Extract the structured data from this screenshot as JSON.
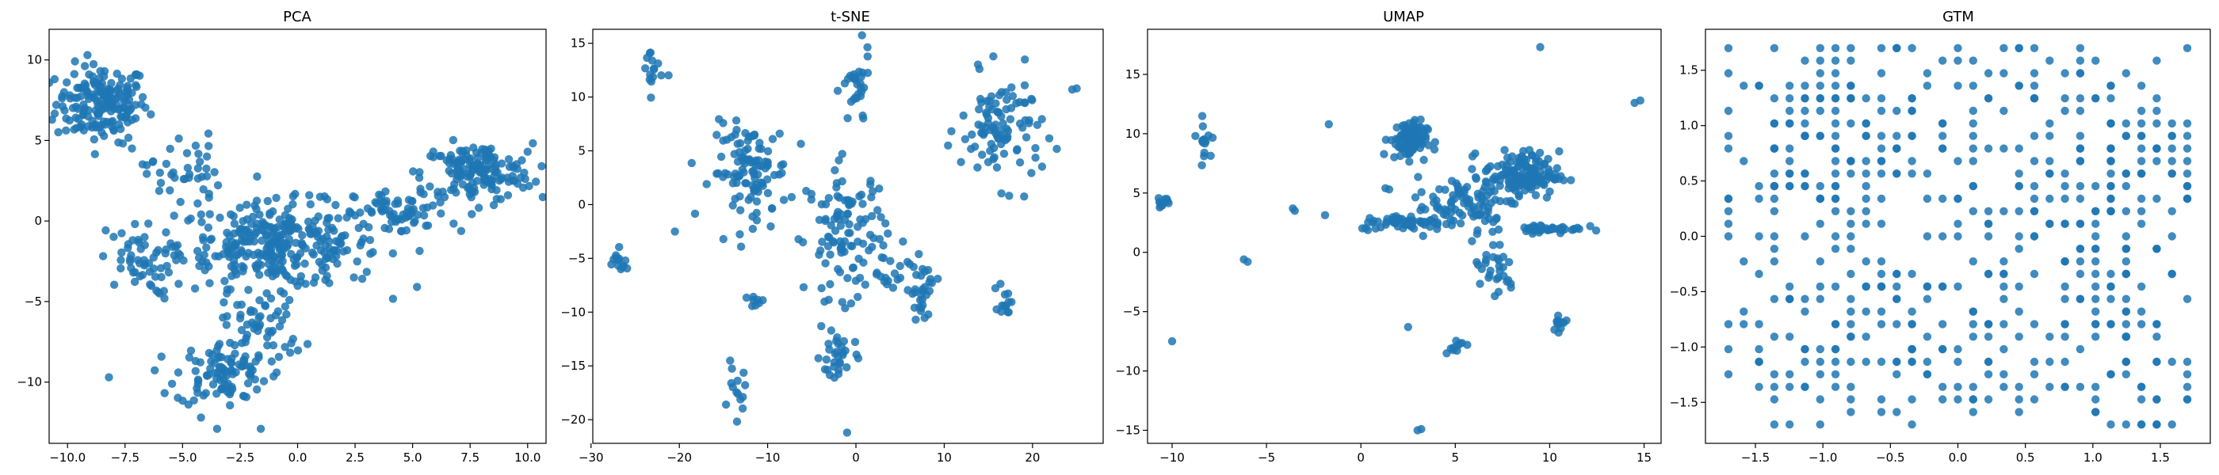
{
  "figure": {
    "panel_titles": [
      "PCA",
      "t-SNE",
      "UMAP",
      "GTM"
    ]
  },
  "chart_data": [
    {
      "type": "scatter",
      "title": "PCA",
      "xlabel": "",
      "ylabel": "",
      "xlim": [
        -10.8,
        10.8
      ],
      "ylim": [
        -13.8,
        11.9
      ],
      "xticks": [
        -10.0,
        -7.5,
        -5.0,
        -2.5,
        0.0,
        2.5,
        5.0,
        7.5,
        10.0
      ],
      "yticks": [
        -10,
        -5,
        0,
        5,
        10
      ],
      "xtick_labels": [
        "−10.0",
        "−7.5",
        "−5.0",
        "−2.5",
        "0.0",
        "2.5",
        "5.0",
        "7.5",
        "10.0"
      ],
      "ytick_labels": [
        "−10",
        "−5",
        "0",
        "5",
        "10"
      ],
      "grid": false,
      "color": "#1f77b4",
      "clusters": [
        {
          "cx": -8.5,
          "cy": 7.3,
          "sx": 1.0,
          "sy": 1.2,
          "n": 180
        },
        {
          "cx": -0.8,
          "cy": -1.5,
          "sx": 2.2,
          "sy": 1.3,
          "n": 320
        },
        {
          "cx": 7.8,
          "cy": 3.0,
          "sx": 1.2,
          "sy": 0.9,
          "n": 160
        },
        {
          "cx": -3.3,
          "cy": -9.5,
          "sx": 1.0,
          "sy": 1.0,
          "n": 90
        },
        {
          "cx": -7.0,
          "cy": -2.5,
          "sx": 0.8,
          "sy": 1.0,
          "n": 50
        },
        {
          "cx": -5.0,
          "cy": 3.0,
          "sx": 0.8,
          "sy": 1.2,
          "n": 40
        },
        {
          "cx": 4.5,
          "cy": 0.5,
          "sx": 1.0,
          "sy": 0.7,
          "n": 60
        },
        {
          "cx": -1.5,
          "cy": -6.5,
          "sx": 0.9,
          "sy": 1.2,
          "n": 60
        }
      ],
      "points": [
        [
          -8.2,
          -9.7
        ],
        [
          -3.5,
          -12.9
        ],
        [
          -4.2,
          -12.2
        ],
        [
          -1.6,
          -12.9
        ],
        [
          10.0,
          4.3
        ],
        [
          -9.9,
          7.8
        ],
        [
          -7.2,
          4.5
        ],
        [
          -6.0,
          -4.5
        ]
      ]
    },
    {
      "type": "scatter",
      "title": "t-SNE",
      "xlabel": "",
      "ylabel": "",
      "xlim": [
        -29.8,
        28.0
      ],
      "ylim": [
        -22.2,
        16.3
      ],
      "xticks": [
        -30,
        -20,
        -10,
        0,
        10,
        20
      ],
      "yticks": [
        -20,
        -15,
        -10,
        -5,
        0,
        5,
        10,
        15
      ],
      "xtick_labels": [
        "−30",
        "−20",
        "−10",
        "0",
        "10",
        "20"
      ],
      "ytick_labels": [
        "−20",
        "−15",
        "−10",
        "−5",
        "0",
        "5",
        "10",
        "15"
      ],
      "grid": false,
      "color": "#1f77b4",
      "clusters": [
        {
          "cx": -12.0,
          "cy": 3.0,
          "sx": 2.2,
          "sy": 2.2,
          "n": 110
        },
        {
          "cx": -1.0,
          "cy": -2.5,
          "sx": 2.3,
          "sy": 3.0,
          "n": 110
        },
        {
          "cx": 16.5,
          "cy": 7.0,
          "sx": 2.3,
          "sy": 2.5,
          "n": 100
        },
        {
          "cx": 0.0,
          "cy": 10.5,
          "sx": 0.8,
          "sy": 1.8,
          "n": 30
        },
        {
          "cx": -23.0,
          "cy": 12.5,
          "sx": 0.6,
          "sy": 1.2,
          "n": 15
        },
        {
          "cx": -27.0,
          "cy": -5.5,
          "sx": 0.6,
          "sy": 0.6,
          "n": 14
        },
        {
          "cx": -2.0,
          "cy": -14.0,
          "sx": 1.0,
          "sy": 1.5,
          "n": 30
        },
        {
          "cx": -13.5,
          "cy": -17.5,
          "sx": 0.5,
          "sy": 1.2,
          "n": 14
        },
        {
          "cx": 7.5,
          "cy": -8.0,
          "sx": 0.8,
          "sy": 1.3,
          "n": 30
        },
        {
          "cx": 17.0,
          "cy": -8.8,
          "sx": 0.4,
          "sy": 0.8,
          "n": 14
        },
        {
          "cx": -11.5,
          "cy": -9.0,
          "sx": 0.5,
          "sy": 0.3,
          "n": 8
        },
        {
          "cx": 4.0,
          "cy": -6.5,
          "sx": 1.0,
          "sy": 0.8,
          "n": 15
        }
      ],
      "points": [
        [
          25.0,
          10.8
        ],
        [
          24.5,
          10.7
        ],
        [
          -1.0,
          -21.2
        ],
        [
          -20.5,
          -2.5
        ],
        [
          -6.0,
          -3.5
        ]
      ]
    },
    {
      "type": "scatter",
      "title": "UMAP",
      "xlabel": "",
      "ylabel": "",
      "xlim": [
        -11.3,
        15.9
      ],
      "ylim": [
        -16.1,
        18.8
      ],
      "xticks": [
        -10,
        -5,
        0,
        5,
        10,
        15
      ],
      "yticks": [
        -15,
        -10,
        -5,
        0,
        5,
        10,
        15
      ],
      "xtick_labels": [
        "−10",
        "−5",
        "0",
        "5",
        "10",
        "15"
      ],
      "ytick_labels": [
        "−15",
        "−10",
        "−5",
        "0",
        "5",
        "10",
        "15"
      ],
      "grid": false,
      "color": "#1f77b4",
      "clusters": [
        {
          "cx": 2.5,
          "cy": 9.5,
          "sx": 0.5,
          "sy": 0.8,
          "n": 90
        },
        {
          "cx": 8.5,
          "cy": 6.5,
          "sx": 1.0,
          "sy": 1.0,
          "n": 150
        },
        {
          "cx": 5.5,
          "cy": 4.0,
          "sx": 1.3,
          "sy": 1.2,
          "n": 80
        },
        {
          "cx": 2.5,
          "cy": 2.5,
          "sx": 1.3,
          "sy": 0.3,
          "n": 60
        },
        {
          "cx": 10.0,
          "cy": 2.0,
          "sx": 0.9,
          "sy": 0.2,
          "n": 40
        },
        {
          "cx": -8.3,
          "cy": 9.5,
          "sx": 0.2,
          "sy": 0.8,
          "n": 15
        },
        {
          "cx": -10.5,
          "cy": 4.2,
          "sx": 0.2,
          "sy": 0.2,
          "n": 12
        },
        {
          "cx": 7.0,
          "cy": -1.5,
          "sx": 0.6,
          "sy": 1.4,
          "n": 30
        },
        {
          "cx": 10.5,
          "cy": -6.0,
          "sx": 0.3,
          "sy": 0.5,
          "n": 12
        },
        {
          "cx": 5.0,
          "cy": -7.8,
          "sx": 0.3,
          "sy": 0.3,
          "n": 10
        }
      ],
      "points": [
        [
          -10.0,
          -7.5
        ],
        [
          -3.5,
          3.5
        ],
        [
          -3.6,
          3.7
        ],
        [
          -1.7,
          10.8
        ],
        [
          -6.0,
          -0.8
        ],
        [
          -6.2,
          -0.6
        ],
        [
          3.0,
          -15.0
        ],
        [
          3.2,
          -14.9
        ],
        [
          14.8,
          12.8
        ],
        [
          14.5,
          12.6
        ],
        [
          9.5,
          17.3
        ],
        [
          2.5,
          -6.3
        ],
        [
          1.5,
          5.3
        ],
        [
          1.3,
          5.4
        ]
      ]
    },
    {
      "type": "scatter",
      "title": "GTM",
      "xlabel": "",
      "ylabel": "",
      "xlim": [
        -1.87,
        1.87
      ],
      "ylim": [
        -1.87,
        1.87
      ],
      "xticks": [
        -1.5,
        -1.0,
        -0.5,
        0.0,
        0.5,
        1.0,
        1.5
      ],
      "yticks": [
        -1.5,
        -1.0,
        -0.5,
        0.0,
        0.5,
        1.0,
        1.5
      ],
      "xtick_labels": [
        "−1.5",
        "−1.0",
        "−0.5",
        "0.0",
        "0.5",
        "1.0",
        "1.5"
      ],
      "ytick_labels": [
        "−1.5",
        "−1.0",
        "−0.5",
        "0.0",
        "0.5",
        "1.0",
        "1.5"
      ],
      "grid": false,
      "color": "#1f77b4",
      "grid_nodes": 31,
      "grid_range": [
        -1.7,
        1.7
      ],
      "clusters": [
        {
          "cx": -1.0,
          "cy": 0.8,
          "sx": 0.35,
          "sy": 0.45,
          "n": 120
        },
        {
          "cx": 1.1,
          "cy": 0.7,
          "sx": 0.35,
          "sy": 0.5,
          "n": 120
        },
        {
          "cx": -0.6,
          "cy": -0.7,
          "sx": 0.45,
          "sy": 0.35,
          "n": 70
        },
        {
          "cx": 1.0,
          "cy": -0.5,
          "sx": 0.35,
          "sy": 0.35,
          "n": 60
        },
        {
          "cx": 0.0,
          "cy": -1.2,
          "sx": 0.6,
          "sy": 0.35,
          "n": 60
        },
        {
          "cx": -1.4,
          "cy": -0.9,
          "sx": 0.2,
          "sy": 0.6,
          "n": 30
        },
        {
          "cx": 0.3,
          "cy": 0.2,
          "sx": 0.3,
          "sy": 0.5,
          "n": 40
        },
        {
          "cx": 1.4,
          "cy": -1.3,
          "sx": 0.3,
          "sy": 0.3,
          "n": 30
        },
        {
          "cx": -0.2,
          "cy": 1.3,
          "sx": 0.6,
          "sy": 0.4,
          "n": 50
        }
      ],
      "points": [
        [
          -1.7,
          1.7
        ],
        [
          0.0,
          1.55
        ],
        [
          -0.1,
          0.8
        ],
        [
          0.5,
          0.5
        ],
        [
          1.7,
          1.7
        ],
        [
          -1.7,
          0.35
        ]
      ]
    }
  ]
}
